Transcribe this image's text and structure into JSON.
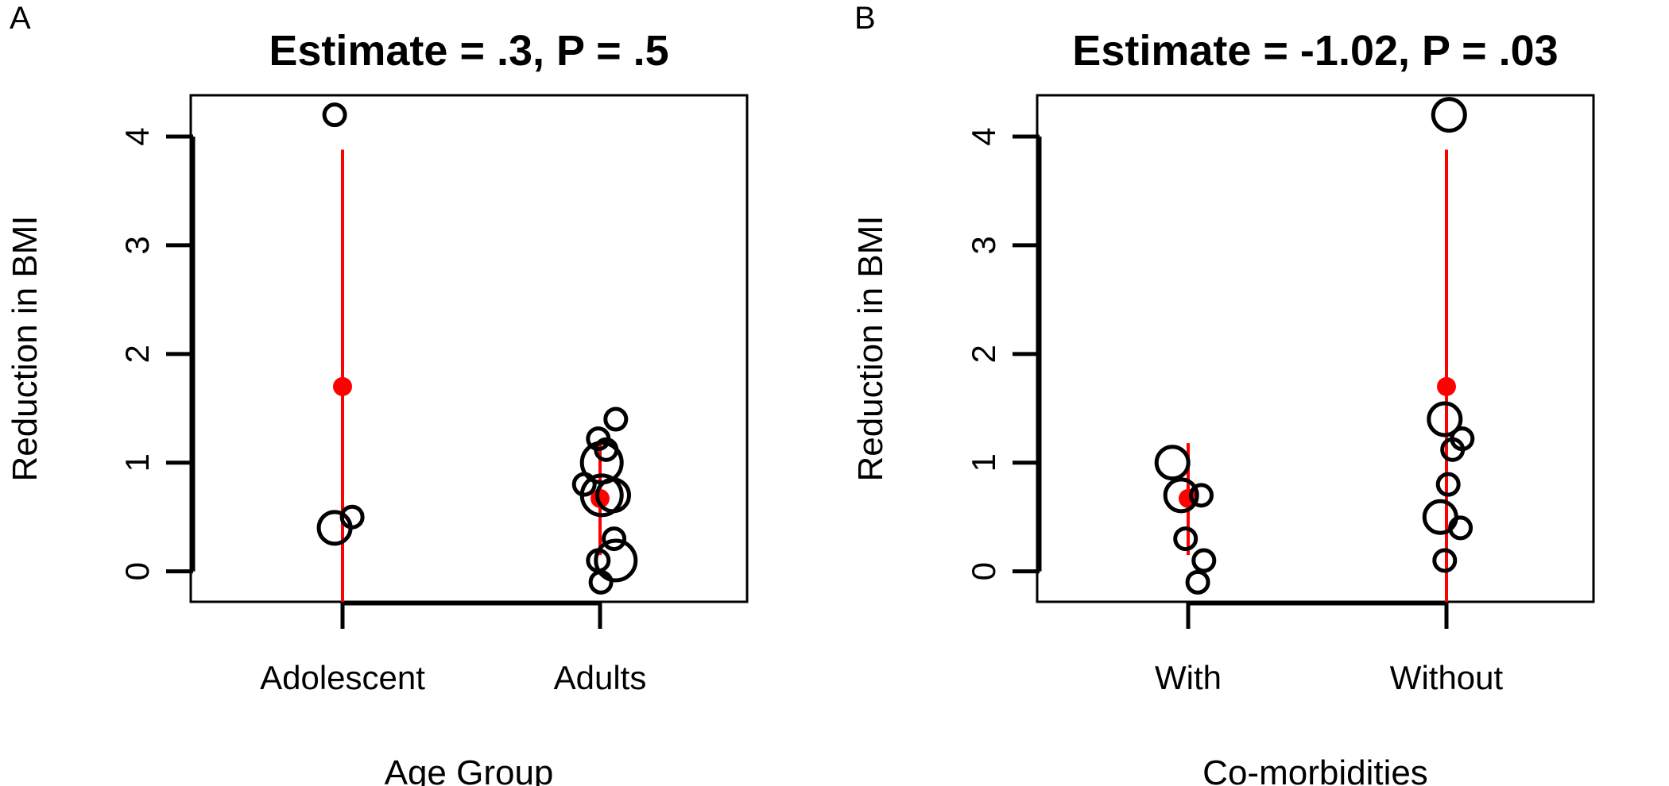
{
  "chart_data": [
    {
      "type": "scatter",
      "panel_label": "A",
      "title": "Estimate = .3, P = .5",
      "xlabel": "Age Group",
      "ylabel": "Reduction in BMI",
      "categories": [
        "Adolescent",
        "Adults"
      ],
      "yticks": [
        "0",
        "1",
        "2",
        "3",
        "4"
      ],
      "ylim": [
        -0.28,
        4.38
      ],
      "grid": false,
      "points": [
        {
          "category": "Adolescent",
          "jitter": -0.09,
          "y": 4.2,
          "size": "small"
        },
        {
          "category": "Adolescent",
          "jitter": -0.09,
          "y": 0.4,
          "size": "medium"
        },
        {
          "category": "Adolescent",
          "jitter": 0.11,
          "y": 0.5,
          "size": "small"
        },
        {
          "category": "Adults",
          "jitter": -0.18,
          "y": 0.8,
          "size": "small"
        },
        {
          "category": "Adults",
          "jitter": -0.02,
          "y": 1.22,
          "size": "small"
        },
        {
          "category": "Adults",
          "jitter": 0.07,
          "y": 1.12,
          "size": "small"
        },
        {
          "category": "Adults",
          "jitter": 0.18,
          "y": 1.4,
          "size": "small"
        },
        {
          "category": "Adults",
          "jitter": 0.02,
          "y": 1.0,
          "size": "large"
        },
        {
          "category": "Adults",
          "jitter": 0.02,
          "y": 0.7,
          "size": "large"
        },
        {
          "category": "Adults",
          "jitter": 0.15,
          "y": 0.7,
          "size": "medium"
        },
        {
          "category": "Adults",
          "jitter": 0.16,
          "y": 0.3,
          "size": "small"
        },
        {
          "category": "Adults",
          "jitter": -0.02,
          "y": 0.1,
          "size": "small"
        },
        {
          "category": "Adults",
          "jitter": 0.18,
          "y": 0.1,
          "size": "large"
        },
        {
          "category": "Adults",
          "jitter": 0.01,
          "y": -0.1,
          "size": "small"
        }
      ],
      "summary": [
        {
          "category": "Adolescent",
          "mean": 1.7,
          "lower": -0.28,
          "upper": 3.88
        },
        {
          "category": "Adults",
          "mean": 0.67,
          "lower": 0.15,
          "upper": 1.18
        }
      ],
      "colors": {
        "points": "#000000",
        "summary": "#ff0000"
      }
    },
    {
      "type": "scatter",
      "panel_label": "B",
      "title": "Estimate = -1.02, P = .03",
      "xlabel": "Co-morbidities",
      "ylabel": "Reduction in BMI",
      "categories": [
        "With",
        "Without"
      ],
      "yticks": [
        "0",
        "1",
        "2",
        "3",
        "4"
      ],
      "ylim": [
        -0.28,
        4.38
      ],
      "grid": false,
      "points": [
        {
          "category": "With",
          "jitter": -0.18,
          "y": 1.0,
          "size": "medium"
        },
        {
          "category": "With",
          "jitter": -0.08,
          "y": 0.7,
          "size": "medium"
        },
        {
          "category": "With",
          "jitter": 0.15,
          "y": 0.7,
          "size": "small"
        },
        {
          "category": "With",
          "jitter": -0.03,
          "y": 0.3,
          "size": "small"
        },
        {
          "category": "With",
          "jitter": 0.18,
          "y": 0.1,
          "size": "small"
        },
        {
          "category": "With",
          "jitter": 0.11,
          "y": -0.1,
          "size": "small"
        },
        {
          "category": "Without",
          "jitter": 0.03,
          "y": 4.2,
          "size": "medium"
        },
        {
          "category": "Without",
          "jitter": -0.02,
          "y": 1.4,
          "size": "medium"
        },
        {
          "category": "Without",
          "jitter": 0.07,
          "y": 1.12,
          "size": "small"
        },
        {
          "category": "Without",
          "jitter": 0.18,
          "y": 1.22,
          "size": "small"
        },
        {
          "category": "Without",
          "jitter": 0.02,
          "y": 0.8,
          "size": "small"
        },
        {
          "category": "Without",
          "jitter": -0.07,
          "y": 0.5,
          "size": "medium"
        },
        {
          "category": "Without",
          "jitter": 0.16,
          "y": 0.4,
          "size": "small"
        },
        {
          "category": "Without",
          "jitter": -0.02,
          "y": 0.1,
          "size": "small"
        }
      ],
      "summary": [
        {
          "category": "With",
          "mean": 0.67,
          "lower": 0.15,
          "upper": 1.18
        },
        {
          "category": "Without",
          "mean": 1.7,
          "lower": -0.28,
          "upper": 3.88
        }
      ],
      "colors": {
        "points": "#000000",
        "summary": "#ff0000"
      }
    }
  ]
}
